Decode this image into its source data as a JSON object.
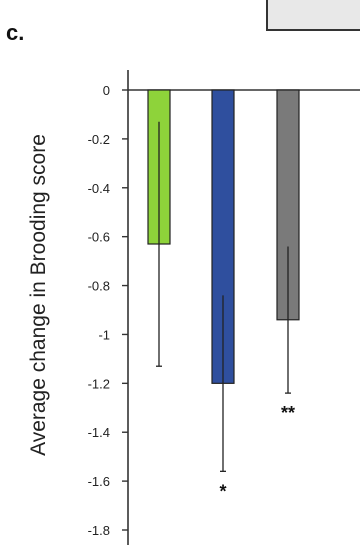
{
  "panel_label": "c.",
  "chart_data": {
    "type": "bar",
    "title": "",
    "xlabel": "",
    "ylabel": "Average change in Brooding score",
    "ylim": [
      -1.8,
      0
    ],
    "yticks": [
      0,
      -0.2,
      -0.4,
      -0.6,
      -0.8,
      -1,
      -1.2,
      -1.4,
      -1.6,
      -1.8
    ],
    "ytick_labels": [
      "0",
      "-0.2",
      "-0.4",
      "-0.6",
      "-0.8",
      "-1",
      "-1.2",
      "-1.4",
      "-1.6",
      "-1.8"
    ],
    "grid": false,
    "bars": [
      {
        "value": -0.63,
        "error": 0.5,
        "color": "#8ed33a",
        "significance": ""
      },
      {
        "value": -1.2,
        "error": 0.36,
        "color": "#2f4f9e",
        "significance": "*"
      },
      {
        "value": -0.94,
        "error": 0.3,
        "color": "#7a7a7a",
        "significance": "**"
      }
    ]
  }
}
